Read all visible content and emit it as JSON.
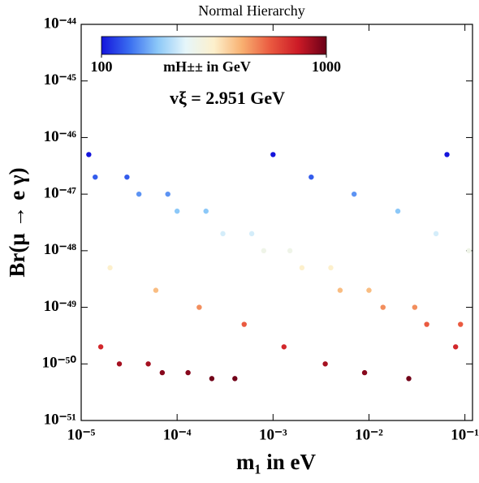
{
  "chart_data": {
    "type": "scatter",
    "title": "Normal Hierarchy",
    "xlabel": "m₁ in eV",
    "ylabel": "Br(μ → e γ)",
    "annotation": "vξ = 2.951 GeV",
    "log_x": true,
    "log_y": true,
    "xlim": [
      1e-05,
      0.12
    ],
    "ylim": [
      1e-51,
      1e-44
    ],
    "xticks": [
      {
        "value": 1e-05,
        "label": "10⁻⁵"
      },
      {
        "value": 0.0001,
        "label": "10⁻⁴"
      },
      {
        "value": 0.001,
        "label": "10⁻³"
      },
      {
        "value": 0.01,
        "label": "10⁻²"
      },
      {
        "value": 0.1,
        "label": "10⁻¹"
      }
    ],
    "yticks": [
      {
        "value": 1e-51,
        "label": "10⁻⁵¹"
      },
      {
        "value": 1e-50,
        "label": "10⁻⁵⁰"
      },
      {
        "value": 1e-49,
        "label": "10⁻⁴⁹"
      },
      {
        "value": 1e-48,
        "label": "10⁻⁴⁸"
      },
      {
        "value": 1e-47,
        "label": "10⁻⁴⁷"
      },
      {
        "value": 1e-46,
        "label": "10⁻⁴⁶"
      },
      {
        "value": 1e-45,
        "label": "10⁻⁴⁵"
      },
      {
        "value": 1e-44,
        "label": "10⁻⁴⁴"
      }
    ],
    "colorbar": {
      "label": "mH±± in GeV",
      "lim": [
        100,
        1000
      ],
      "ticks": [
        100,
        1000
      ],
      "colormap": [
        "#1414dc",
        "#3a6ef0",
        "#8cc8f8",
        "#e6f6fa",
        "#fdf0cc",
        "#f8b070",
        "#ea5a40",
        "#cc1a26",
        "#6a0018"
      ]
    },
    "series": [
      {
        "x": [
          1.2e-05,
          3e-05,
          8e-05,
          0.0002,
          0.0006,
          0.0015,
          0.004,
          0.01,
          0.03,
          0.09,
          1.6e-05,
          5e-05,
          0.00013,
          0.0004,
          0.001,
          0.0025,
          0.007,
          0.02,
          0.05,
          0.11,
          2e-05,
          6e-05,
          0.00017,
          0.0005,
          0.0013,
          0.0035,
          0.009,
          0.026,
          0.065,
          1.4e-05,
          4e-05,
          0.0001,
          0.0003,
          0.0008,
          0.002,
          0.005,
          0.014,
          0.04,
          0.08,
          2.5e-05,
          7e-05,
          0.00023
        ],
        "y": [
          5e-47,
          2e-47,
          1e-47,
          5e-48,
          2e-48,
          1e-48,
          5e-49,
          2e-49,
          1e-49,
          5e-50,
          2e-50,
          1e-50,
          7e-51,
          5.5e-51,
          5e-47,
          2e-47,
          1e-47,
          5e-48,
          2e-48,
          1e-48,
          5e-49,
          2e-49,
          1e-49,
          5e-50,
          2e-50,
          1e-50,
          7e-51,
          5.5e-51,
          5e-47,
          2e-47,
          1e-47,
          5e-48,
          2e-48,
          1e-48,
          5e-49,
          2e-49,
          1e-49,
          5e-50,
          2e-50,
          1e-50,
          7e-51,
          5.5e-51
        ],
        "c": [
          100,
          126,
          150,
          178,
          224,
          266,
          316,
          398,
          473,
          562,
          707,
          841,
          918,
          976,
          100,
          126,
          150,
          178,
          224,
          266,
          316,
          398,
          473,
          562,
          707,
          841,
          918,
          976,
          100,
          126,
          150,
          178,
          224,
          266,
          316,
          398,
          473,
          562,
          707,
          841,
          918,
          976
        ]
      }
    ]
  }
}
